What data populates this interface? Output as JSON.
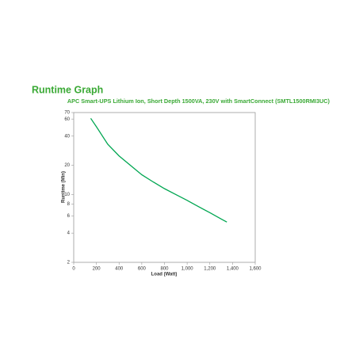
{
  "chart_data": {
    "type": "line",
    "title": "Runtime Graph",
    "subtitle": "APC Smart-UPS Lithium Ion, Short Depth 1500VA, 230V with SmartConnect (SMTL1500RMI3UC)",
    "x_label": "Load (Watt)",
    "y_label": "Runtime (Min)",
    "x": [
      150,
      200,
      300,
      400,
      500,
      600,
      700,
      800,
      900,
      1000,
      1100,
      1200,
      1300,
      1350
    ],
    "series": [
      {
        "color": "#00a651",
        "values": [
          61,
          50,
          33,
          25,
          20,
          16,
          13.5,
          11.5,
          10,
          8.7,
          7.5,
          6.5,
          5.6,
          5.2
        ]
      }
    ],
    "xlim": [
      0,
      1600
    ],
    "xticks": [
      0,
      200,
      400,
      600,
      800,
      {
        "value": 1000,
        "label": "1,000"
      },
      {
        "value": 1200,
        "label": "1,200"
      },
      {
        "value": 1400,
        "label": "1,400"
      },
      {
        "value": 1600,
        "label": "1,600"
      }
    ],
    "ylim": [
      2,
      70
    ],
    "yticks": [
      2,
      4,
      6,
      8,
      10,
      20,
      40,
      60,
      70
    ],
    "log_y": true,
    "grid": false,
    "title_color": "#3aa935"
  }
}
